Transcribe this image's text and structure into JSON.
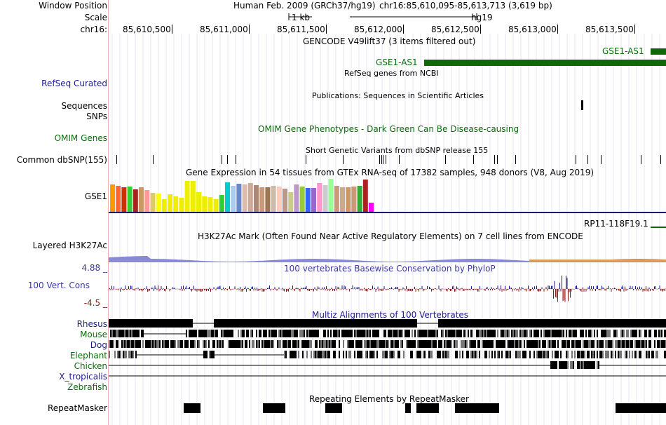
{
  "header": {
    "window_position_label": "Window Position",
    "scale_label": "Scale",
    "chrom_label": "chr16:",
    "assembly": "Human Feb. 2009 (GRCh37/hg19)",
    "position": "chr16:85,610,095-85,613,713 (3,619 bp)",
    "scale_value": "1 kb",
    "scale_db": "hg19",
    "ruler_ticks": [
      "85,610,500",
      "85,611,000",
      "85,611,500",
      "85,612,000",
      "85,612,500",
      "85,613,000",
      "85,613,500"
    ]
  },
  "tracks": {
    "gencode_title": "GENCODE V49lift37 (3 items filtered out)",
    "gse1_as1_a": "GSE1-AS1",
    "gse1_as1_b": "GSE1-AS1",
    "refseq_subtitle": "RefSeq genes from NCBI",
    "refseq_label": "RefSeq Curated",
    "publications_title": "Publications: Sequences in Scientific Articles",
    "sequences_label": "Sequences",
    "snps_label": "SNPs",
    "omim_label": "OMIM Genes",
    "omim_title": "OMIM Gene Phenotypes - Dark Green Can Be Disease-causing",
    "dbsnp_title": "Short Genetic Variants from dbSNP release 155",
    "dbsnp_label": "Common dbSNP(155)",
    "gtex_title": "Gene Expression in 54 tissues from GTEx RNA-seq of 17382 samples, 948 donors (V8, Aug 2019)",
    "gtex_label": "GSE1",
    "rp11_label": "RP11-118F19.1",
    "h3k27_title": "H3K27Ac Mark (Often Found Near Active Regulatory Elements) on 7 cell lines from ENCODE",
    "h3k27_label": "Layered H3K27Ac",
    "phylop_title": "100 vertebrates Basewise Conservation by PhyloP",
    "cons_label": "100 Vert. Cons",
    "cons_max": "4.88 _",
    "cons_min": "-4.5 _",
    "multiz_title": "Multiz Alignments of 100 Vertebrates",
    "species": [
      "Rhesus",
      "Mouse",
      "Dog",
      "Elephant",
      "Chicken",
      "X_tropicalis",
      "Zebrafish"
    ],
    "repeat_title": "Repeating Elements by RepeatMasker",
    "repeat_label": "RepeatMasker"
  },
  "colors": {
    "gencode_green": "#0b6b0b",
    "navy_label": "#1a1a8c",
    "omim_green": "#0b6b0b",
    "phylop_pos": "#1a1a8c",
    "phylop_neg": "#8b1a1a"
  },
  "gtex_bar_levels": [
    0.82,
    0.78,
    0.72,
    0.74,
    0.66,
    0.72,
    0.64,
    0.56,
    0.54,
    0.38,
    0.52,
    0.46,
    0.42,
    0.92,
    0.92,
    0.58,
    0.46,
    0.44,
    0.38,
    0.5,
    0.88,
    0.78,
    0.84,
    0.82,
    0.86,
    0.8,
    0.72,
    0.72,
    0.78,
    0.74,
    0.68,
    0.58,
    0.82,
    0.74,
    0.7,
    0.7,
    0.86,
    0.8,
    0.98,
    0.78,
    0.72,
    0.72,
    0.76,
    0.78,
    0.96,
    0.28
  ],
  "gtex_bar_colors": [
    "#ff9900",
    "#ff6633",
    "#cc3300",
    "#33cc33",
    "#aa2222",
    "#cc9966",
    "#ff9999",
    "#ddcc66",
    "#ffff00",
    "#eeee00",
    "#eeee00",
    "#eeee00",
    "#eeee00",
    "#eeee00",
    "#eeee00",
    "#eeee00",
    "#eeee00",
    "#eeee00",
    "#eeee00",
    "#33cc33",
    "#00cccc",
    "#aaccee",
    "#6688cc",
    "#ddbbaa",
    "#ccaa99",
    "#aa8877",
    "#cc9977",
    "#997755",
    "#ccbbaa",
    "#ffccbb",
    "#bb9988",
    "#cccc88",
    "#bb99cc",
    "#99cc33",
    "#3366ff",
    "#9966cc",
    "#ff99cc",
    "#cccccc",
    "#99ff99",
    "#cc9977",
    "#ccaa88",
    "#cc9966",
    "#cc9977",
    "#33aa33",
    "#aa2222",
    "#ff00ff"
  ]
}
